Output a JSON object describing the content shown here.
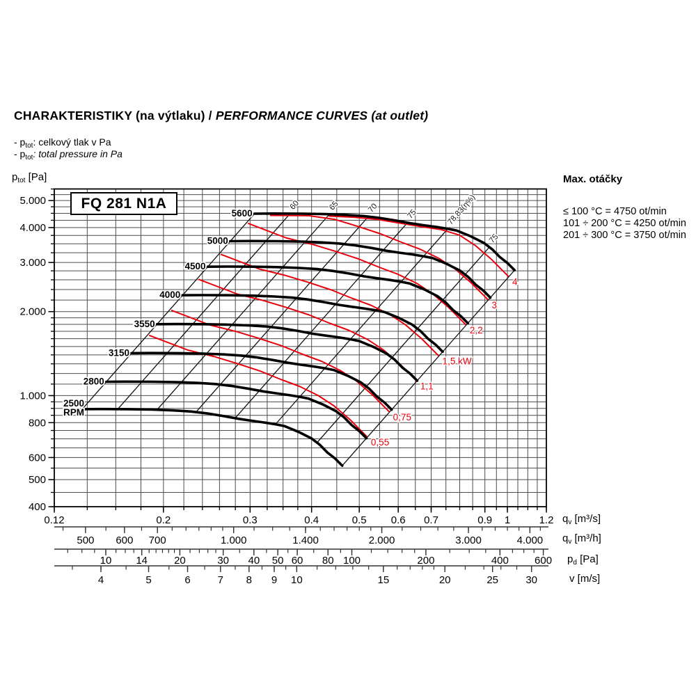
{
  "page": {
    "title": {
      "part1": "CHARAKTERISTIKY (na výtlaku)",
      "sep": " / ",
      "part2": "PERFORMANCE CURVES (at outlet)"
    },
    "subtitle_cz": {
      "prefix": "- p",
      "sub": "tot",
      "rest": ": celkový tlak v Pa"
    },
    "subtitle_en": {
      "prefix": "- p",
      "sub": "tot",
      "rest": ": total pressure in Pa"
    },
    "model_box": "FQ 281 N1A",
    "max_speed": {
      "heading": "Max. otáčky",
      "lines": [
        "≤ 100 °C = 4750 ot/min",
        "101 ÷ 200 °C = 4250 ot/min",
        "201 ÷ 300 °C = 3750 ot/min"
      ]
    },
    "y_axis_unit": {
      "main": "p",
      "sub": "tot",
      "rest": " [Pa]"
    },
    "x_axis_units": [
      {
        "main": "q",
        "sub": "v",
        "rest": " [m³/s]"
      },
      {
        "main": "q",
        "sub": "v",
        "rest": " [m³/h]"
      },
      {
        "main": "p",
        "sub": "d",
        "rest": " [Pa]"
      },
      {
        "main": "v",
        "sub": "",
        "rest": " [m/s]"
      }
    ]
  },
  "chart_data": {
    "type": "line",
    "model": "FQ 281 N1A",
    "y_axis": {
      "label": "p_tot [Pa]",
      "scale": "log",
      "range": [
        400,
        5500
      ],
      "major_ticks": [
        {
          "v": 400,
          "t": "400"
        },
        {
          "v": 500,
          "t": "500"
        },
        {
          "v": 600,
          "t": "600"
        },
        {
          "v": 800,
          "t": "800"
        },
        {
          "v": 1000,
          "t": "1.000"
        },
        {
          "v": 2000,
          "t": "2.000"
        },
        {
          "v": 3000,
          "t": "3.000"
        },
        {
          "v": 4000,
          "t": "4.000"
        },
        {
          "v": 5000,
          "t": "5.000"
        }
      ],
      "grid": [
        400,
        450,
        500,
        550,
        600,
        650,
        700,
        750,
        800,
        850,
        900,
        950,
        1000,
        1100,
        1200,
        1300,
        1400,
        1500,
        1600,
        1700,
        1800,
        1900,
        2000,
        2200,
        2400,
        2600,
        2800,
        3000,
        3250,
        3500,
        3750,
        4000,
        4250,
        4500,
        4750,
        5000,
        5250,
        5500
      ]
    },
    "x_axis_qv_m3s": {
      "label": "qv [m³/s]",
      "scale": "log",
      "range": [
        0.12,
        1.2
      ],
      "major_ticks": [
        {
          "v": 0.12,
          "t": "0.12"
        },
        {
          "v": 0.2,
          "t": "0.2"
        },
        {
          "v": 0.3,
          "t": "0.3"
        },
        {
          "v": 0.4,
          "t": "0.4"
        },
        {
          "v": 0.5,
          "t": "0.5"
        },
        {
          "v": 0.6,
          "t": "0.6"
        },
        {
          "v": 0.7,
          "t": "0.7"
        },
        {
          "v": 0.9,
          "t": "0.9"
        },
        {
          "v": 1,
          "t": "1"
        },
        {
          "v": 1.2,
          "t": "1.2"
        }
      ],
      "grid": [
        0.12,
        0.14,
        0.16,
        0.18,
        0.2,
        0.22,
        0.24,
        0.26,
        0.28,
        0.3,
        0.325,
        0.35,
        0.375,
        0.4,
        0.45,
        0.5,
        0.55,
        0.6,
        0.65,
        0.7,
        0.75,
        0.8,
        0.85,
        0.9,
        0.95,
        1.0,
        1.05,
        1.1,
        1.15,
        1.2
      ]
    },
    "x_axis_qv_m3h": {
      "label": "qv [m³/h]",
      "major_ticks": [
        {
          "v": 500,
          "t": "500"
        },
        {
          "v": 600,
          "t": "600"
        },
        {
          "v": 700,
          "t": "700"
        },
        {
          "v": 1000,
          "t": "1.000"
        },
        {
          "v": 1400,
          "t": "1.400"
        },
        {
          "v": 2000,
          "t": "2.000"
        },
        {
          "v": 3000,
          "t": "3.000"
        },
        {
          "v": 4000,
          "t": "4.000"
        }
      ],
      "minor_ticks": [
        450,
        500,
        550,
        600,
        650,
        700,
        750,
        800,
        850,
        900,
        950,
        1000,
        1100,
        1200,
        1300,
        1400,
        1500,
        1600,
        1700,
        1800,
        1900,
        2000,
        2200,
        2400,
        2600,
        2800,
        3000,
        3200,
        3400,
        3600,
        3800,
        4000,
        4200
      ]
    },
    "x_axis_pd": {
      "label": "pd [Pa]",
      "major_ticks": [
        {
          "v": 10,
          "t": "10"
        },
        {
          "v": 14,
          "t": "14"
        },
        {
          "v": 20,
          "t": "20"
        },
        {
          "v": 30,
          "t": "30"
        },
        {
          "v": 40,
          "t": "40"
        },
        {
          "v": 50,
          "t": "50"
        },
        {
          "v": 60,
          "t": "60"
        },
        {
          "v": 80,
          "t": "80"
        },
        {
          "v": 100,
          "t": "100"
        },
        {
          "v": 200,
          "t": "200"
        },
        {
          "v": 400,
          "t": "400"
        },
        {
          "v": 600,
          "t": "600"
        }
      ],
      "minor_ticks": [
        7,
        8,
        9,
        10,
        11,
        12,
        13,
        14,
        15,
        16,
        17,
        18,
        19,
        20,
        22,
        24,
        26,
        28,
        30,
        35,
        40,
        45,
        50,
        55,
        60,
        70,
        80,
        90,
        100,
        120,
        140,
        160,
        180,
        200,
        250,
        300,
        350,
        400,
        450,
        500,
        550,
        600
      ]
    },
    "x_axis_v": {
      "label": "v [m/s]",
      "major_ticks": [
        {
          "v": 4,
          "t": "4"
        },
        {
          "v": 5,
          "t": "5"
        },
        {
          "v": 6,
          "t": "6"
        },
        {
          "v": 7,
          "t": "7"
        },
        {
          "v": 8,
          "t": "8"
        },
        {
          "v": 9,
          "t": "9"
        },
        {
          "v": 10,
          "t": "10"
        },
        {
          "v": 15,
          "t": "15"
        },
        {
          "v": 20,
          "t": "20"
        },
        {
          "v": 25,
          "t": "25"
        },
        {
          "v": 30,
          "t": "30"
        }
      ],
      "minor_ticks": [
        3.5,
        4,
        4.5,
        5,
        5.5,
        6,
        6.5,
        7,
        7.5,
        8,
        8.5,
        9,
        9.5,
        10,
        11,
        12,
        13,
        14,
        15,
        16,
        17,
        18,
        19,
        20,
        22,
        24,
        26,
        28,
        30
      ]
    },
    "rpm_curves": {
      "base_speed": 2500,
      "speeds": [
        2500,
        2800,
        3150,
        3550,
        4000,
        4500,
        5000,
        5600
      ],
      "labels": [
        "2500",
        "2800",
        "3150",
        "3550",
        "4000",
        "4500",
        "5000",
        "5600"
      ],
      "rpm_unit_label": "RPM",
      "base_curve_q_p": [
        [
          0.1367,
          894
        ],
        [
          0.15,
          895
        ],
        [
          0.17,
          894
        ],
        [
          0.19,
          891
        ],
        [
          0.21,
          885
        ],
        [
          0.228,
          877
        ],
        [
          0.245,
          864
        ],
        [
          0.265,
          845
        ],
        [
          0.284,
          826
        ],
        [
          0.302,
          813
        ],
        [
          0.321,
          801
        ],
        [
          0.337,
          790
        ],
        [
          0.352,
          778
        ],
        [
          0.376,
          742
        ],
        [
          0.4,
          702
        ],
        [
          0.416,
          666
        ],
        [
          0.4305,
          626
        ],
        [
          0.447,
          594
        ],
        [
          0.4617,
          561
        ]
      ]
    },
    "power_curves": {
      "values_kw": [
        0.55,
        0.75,
        1.1,
        1.5,
        2.2,
        3,
        4
      ],
      "labels": [
        "0,55",
        "0,75",
        "1,1",
        "1,5 kW",
        "2,2",
        "3",
        "4"
      ],
      "color": "#e8000d",
      "base_curve_q_p": [
        [
          0.1875,
          1642
        ],
        [
          0.2242,
          1456
        ],
        [
          0.2529,
          1382
        ],
        [
          0.2817,
          1305
        ],
        [
          0.3139,
          1226
        ],
        [
          0.3459,
          1144
        ],
        [
          0.3777,
          1080
        ],
        [
          0.4122,
          1002
        ],
        [
          0.4443,
          919
        ],
        [
          0.479,
          820
        ],
        [
          0.5178,
          714
        ]
      ]
    },
    "efficiency_lines": {
      "q_at_base_speed": [
        0.1367,
        0.1615,
        0.1941,
        0.2329,
        0.2797,
        0.3378,
        0.4103,
        0.4617
      ],
      "labels": [
        "",
        "60",
        "65",
        "70",
        "75",
        "78,83(η%)",
        "75",
        ""
      ]
    }
  }
}
